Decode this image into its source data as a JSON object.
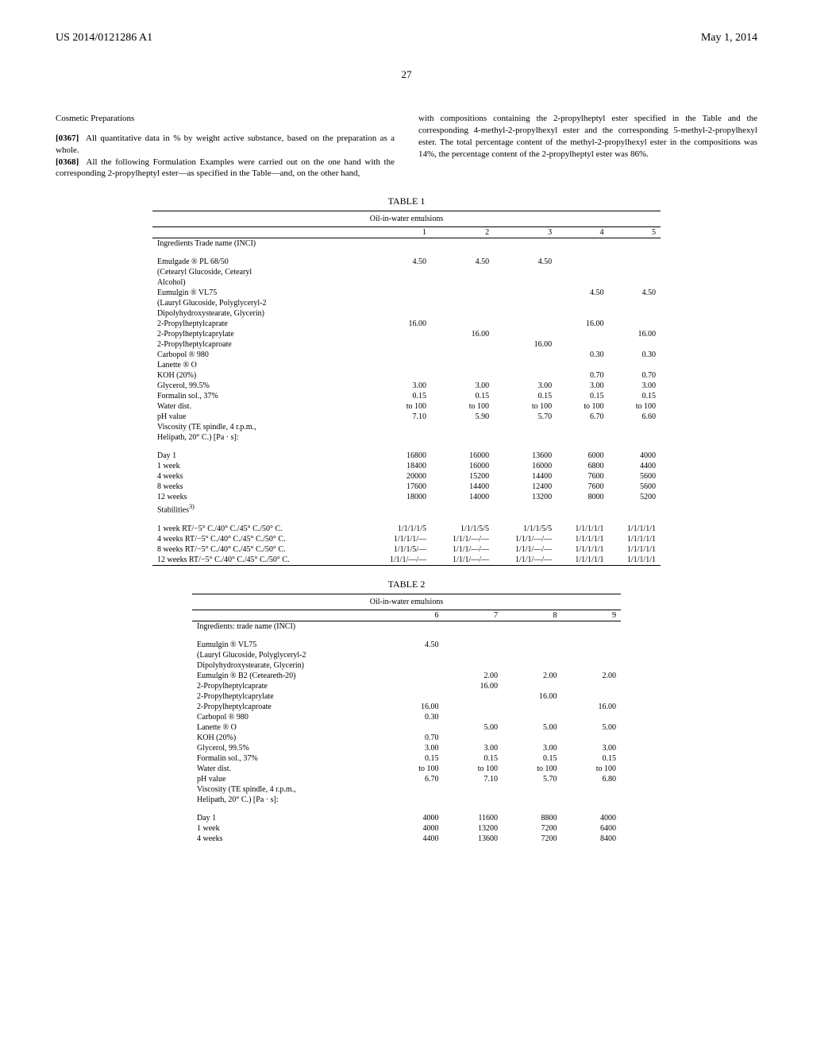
{
  "header": {
    "left": "US 2014/0121286 A1",
    "right": "May 1, 2014",
    "page": "27"
  },
  "intro": {
    "heading": "Cosmetic Preparations",
    "p1_num": "[0367]",
    "p1": "All quantitative data in % by weight active substance, based on the preparation as a whole.",
    "p2_num": "[0368]",
    "p2_left": "All the following Formulation Examples were carried out on the one hand with the corresponding 2-propylheptyl ester—as specified in the Table—and, on the other hand,",
    "p2_right": "with compositions containing the 2-propylheptyl ester specified in the Table and the corresponding 4-methyl-2-propylhexyl ester and the corresponding 5-methyl-2-propylhexyl ester. The total percentage content of the methyl-2-propylhexyl ester in the compositions was 14%, the percentage content of the 2-propylheptyl ester was 86%."
  },
  "table1": {
    "title": "TABLE 1",
    "subtitle": "Oil-in-water emulsions",
    "cols": [
      "1",
      "2",
      "3",
      "4",
      "5"
    ],
    "ingredients_hdr": "Ingredients Trade name (INCI)",
    "rows_ing": [
      {
        "label": "Emulgade ® PL 68/50",
        "v": [
          "4.50",
          "4.50",
          "4.50",
          "",
          ""
        ]
      },
      {
        "label": "(Cetearyl Glucoside, Cetearyl",
        "v": [
          "",
          "",
          "",
          "",
          ""
        ]
      },
      {
        "label": "Alcohol)",
        "v": [
          "",
          "",
          "",
          "",
          ""
        ]
      },
      {
        "label": "Eumulgin ® VL75",
        "v": [
          "",
          "",
          "",
          "4.50",
          "4.50"
        ]
      },
      {
        "label": "(Lauryl Glucoside, Polyglyceryl-2",
        "v": [
          "",
          "",
          "",
          "",
          ""
        ]
      },
      {
        "label": "Dipolyhydroxystearate, Glycerin)",
        "v": [
          "",
          "",
          "",
          "",
          ""
        ]
      },
      {
        "label": "2-Propylheptylcaprate",
        "v": [
          "16.00",
          "",
          "",
          "16.00",
          ""
        ]
      },
      {
        "label": "2-Propylheptylcaprylate",
        "v": [
          "",
          "16.00",
          "",
          "",
          "16.00"
        ]
      },
      {
        "label": "2-Propylheptylcaproate",
        "v": [
          "",
          "",
          "16.00",
          "",
          ""
        ]
      },
      {
        "label": "Carbopol ® 980",
        "v": [
          "",
          "",
          "",
          "0.30",
          "0.30"
        ]
      },
      {
        "label": "Lanette ® O",
        "v": [
          "",
          "",
          "",
          "",
          ""
        ]
      },
      {
        "label": "KOH (20%)",
        "v": [
          "",
          "",
          "",
          "0.70",
          "0.70"
        ]
      },
      {
        "label": "Glycerol, 99.5%",
        "v": [
          "3.00",
          "3.00",
          "3.00",
          "3.00",
          "3.00"
        ]
      },
      {
        "label": "Formalin sol., 37%",
        "v": [
          "0.15",
          "0.15",
          "0.15",
          "0.15",
          "0.15"
        ]
      },
      {
        "label": "Water dist.",
        "v": [
          "to 100",
          "to 100",
          "to 100",
          "to 100",
          "to 100"
        ]
      },
      {
        "label": "pH value",
        "v": [
          "7.10",
          "5.90",
          "5.70",
          "6.70",
          "6.60"
        ]
      },
      {
        "label": "Viscosity (TE spindle, 4 r.p.m.,",
        "v": [
          "",
          "",
          "",
          "",
          ""
        ]
      },
      {
        "label": "Helipath, 20° C.) [Pa · s]:",
        "v": [
          "",
          "",
          "",
          "",
          ""
        ]
      }
    ],
    "rows_visc": [
      {
        "label": "Day 1",
        "v": [
          "16800",
          "16000",
          "13600",
          "6000",
          "4000"
        ]
      },
      {
        "label": "1 week",
        "v": [
          "18400",
          "16000",
          "16000",
          "6800",
          "4400"
        ]
      },
      {
        "label": "4 weeks",
        "v": [
          "20000",
          "15200",
          "14400",
          "7600",
          "5600"
        ]
      },
      {
        "label": "8 weeks",
        "v": [
          "17600",
          "14400",
          "12400",
          "7600",
          "5600"
        ]
      },
      {
        "label": "12 weeks",
        "v": [
          "18000",
          "14000",
          "13200",
          "8000",
          "5200"
        ]
      },
      {
        "label": "Stabilities",
        "sup": "3)",
        "v": [
          "",
          "",
          "",
          "",
          ""
        ]
      }
    ],
    "rows_stab": [
      {
        "label": "1 week RT/−5° C./40° C./45° C./50° C.",
        "v": [
          "1/1/1/1/5",
          "1/1/1/5/5",
          "1/1/1/5/5",
          "1/1/1/1/1",
          "1/1/1/1/1"
        ]
      },
      {
        "label": "4 weeks RT/−5° C./40° C./45° C./50° C.",
        "v": [
          "1/1/1/1/—",
          "1/1/1/—/—",
          "1/1/1/—/—",
          "1/1/1/1/1",
          "1/1/1/1/1"
        ]
      },
      {
        "label": "8 weeks RT/−5° C./40° C./45° C./50° C.",
        "v": [
          "1/1/1/5/—",
          "1/1/1/—/—",
          "1/1/1/—/—",
          "1/1/1/1/1",
          "1/1/1/1/1"
        ]
      },
      {
        "label": "12 weeks RT/−5° C./40° C./45° C./50° C.",
        "v": [
          "1/1/1/—/—",
          "1/1/1/—/—",
          "1/1/1/—/—",
          "1/1/1/1/1",
          "1/1/1/1/1"
        ]
      }
    ]
  },
  "table2": {
    "title": "TABLE 2",
    "subtitle": "Oil-in-water emulsions",
    "cols": [
      "6",
      "7",
      "8",
      "9"
    ],
    "ingredients_hdr": "Ingredients: trade name (INCI)",
    "rows_ing": [
      {
        "label": "Eumulgin ® VL75",
        "v": [
          "4.50",
          "",
          "",
          ""
        ]
      },
      {
        "label": "(Lauryl Glucoside, Polyglyceryl-2",
        "v": [
          "",
          "",
          "",
          ""
        ]
      },
      {
        "label": "Dipolyhydroxystearate, Glycerin)",
        "v": [
          "",
          "",
          "",
          ""
        ]
      },
      {
        "label": "Eumulgin ® B2 (Ceteareth-20)",
        "v": [
          "",
          "2.00",
          "2.00",
          "2.00"
        ]
      },
      {
        "label": "2-Propylheptylcaprate",
        "v": [
          "",
          "16.00",
          "",
          ""
        ]
      },
      {
        "label": "2-Propylheptylcaprylate",
        "v": [
          "",
          "",
          "16.00",
          ""
        ]
      },
      {
        "label": "2-Propylheptylcaproate",
        "v": [
          "16.00",
          "",
          "",
          "16.00"
        ]
      },
      {
        "label": "Carbopol ® 980",
        "v": [
          "0.30",
          "",
          "",
          ""
        ]
      },
      {
        "label": "Lanette ® O",
        "v": [
          "",
          "5.00",
          "5.00",
          "5.00"
        ]
      },
      {
        "label": "KOH (20%)",
        "v": [
          "0.70",
          "",
          "",
          ""
        ]
      },
      {
        "label": "Glycerol, 99.5%",
        "v": [
          "3.00",
          "3.00",
          "3.00",
          "3.00"
        ]
      },
      {
        "label": "Formalin sol., 37%",
        "v": [
          "0.15",
          "0.15",
          "0.15",
          "0.15"
        ]
      },
      {
        "label": "Water dist.",
        "v": [
          "to 100",
          "to 100",
          "to 100",
          "to 100"
        ]
      },
      {
        "label": "pH value",
        "v": [
          "6.70",
          "7.10",
          "5.70",
          "6.80"
        ]
      },
      {
        "label": "Viscosity (TE spindle, 4 r.p.m.,",
        "v": [
          "",
          "",
          "",
          ""
        ]
      },
      {
        "label": "Helipath, 20° C.) [Pa · s]:",
        "v": [
          "",
          "",
          "",
          ""
        ]
      }
    ],
    "rows_visc": [
      {
        "label": "Day 1",
        "v": [
          "4000",
          "11600",
          "8800",
          "4000"
        ]
      },
      {
        "label": "1 week",
        "v": [
          "4000",
          "13200",
          "7200",
          "6400"
        ]
      },
      {
        "label": "4 weeks",
        "v": [
          "4400",
          "13600",
          "7200",
          "8400"
        ]
      }
    ]
  }
}
